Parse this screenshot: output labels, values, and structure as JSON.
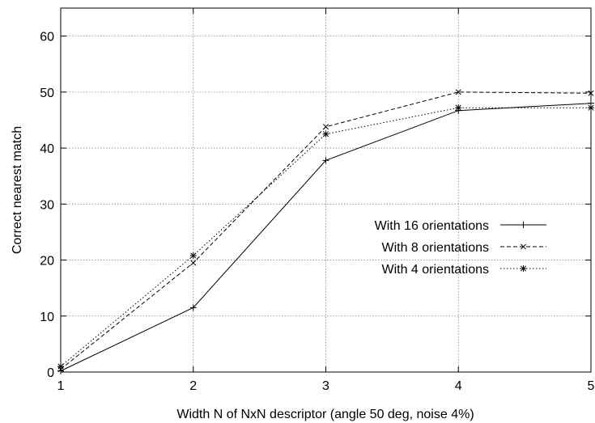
{
  "chart_data": {
    "type": "line",
    "title": "",
    "xlabel": "Width N of NxN descriptor (angle 50 deg, noise 4%)",
    "ylabel": "Correct nearest match",
    "xlim": [
      1,
      5
    ],
    "ylim": [
      0,
      65
    ],
    "xticks": [
      1,
      2,
      3,
      4,
      5
    ],
    "yticks": [
      0,
      10,
      20,
      30,
      40,
      50,
      60
    ],
    "grid": true,
    "legend": "center-right",
    "x": [
      1,
      2,
      3,
      4,
      5
    ],
    "series": [
      {
        "name": "With 16 orientations",
        "values": [
          0.2,
          11.5,
          37.8,
          46.7,
          48.0
        ],
        "dash": "solid",
        "marker": "plus"
      },
      {
        "name": "With 8 orientations",
        "values": [
          0.5,
          19.5,
          43.8,
          50.0,
          49.8
        ],
        "dash": "dashed",
        "marker": "x"
      },
      {
        "name": "With 4 orientations",
        "values": [
          1.0,
          20.8,
          42.5,
          47.2,
          47.2
        ],
        "dash": "dotted",
        "marker": "star"
      }
    ]
  }
}
